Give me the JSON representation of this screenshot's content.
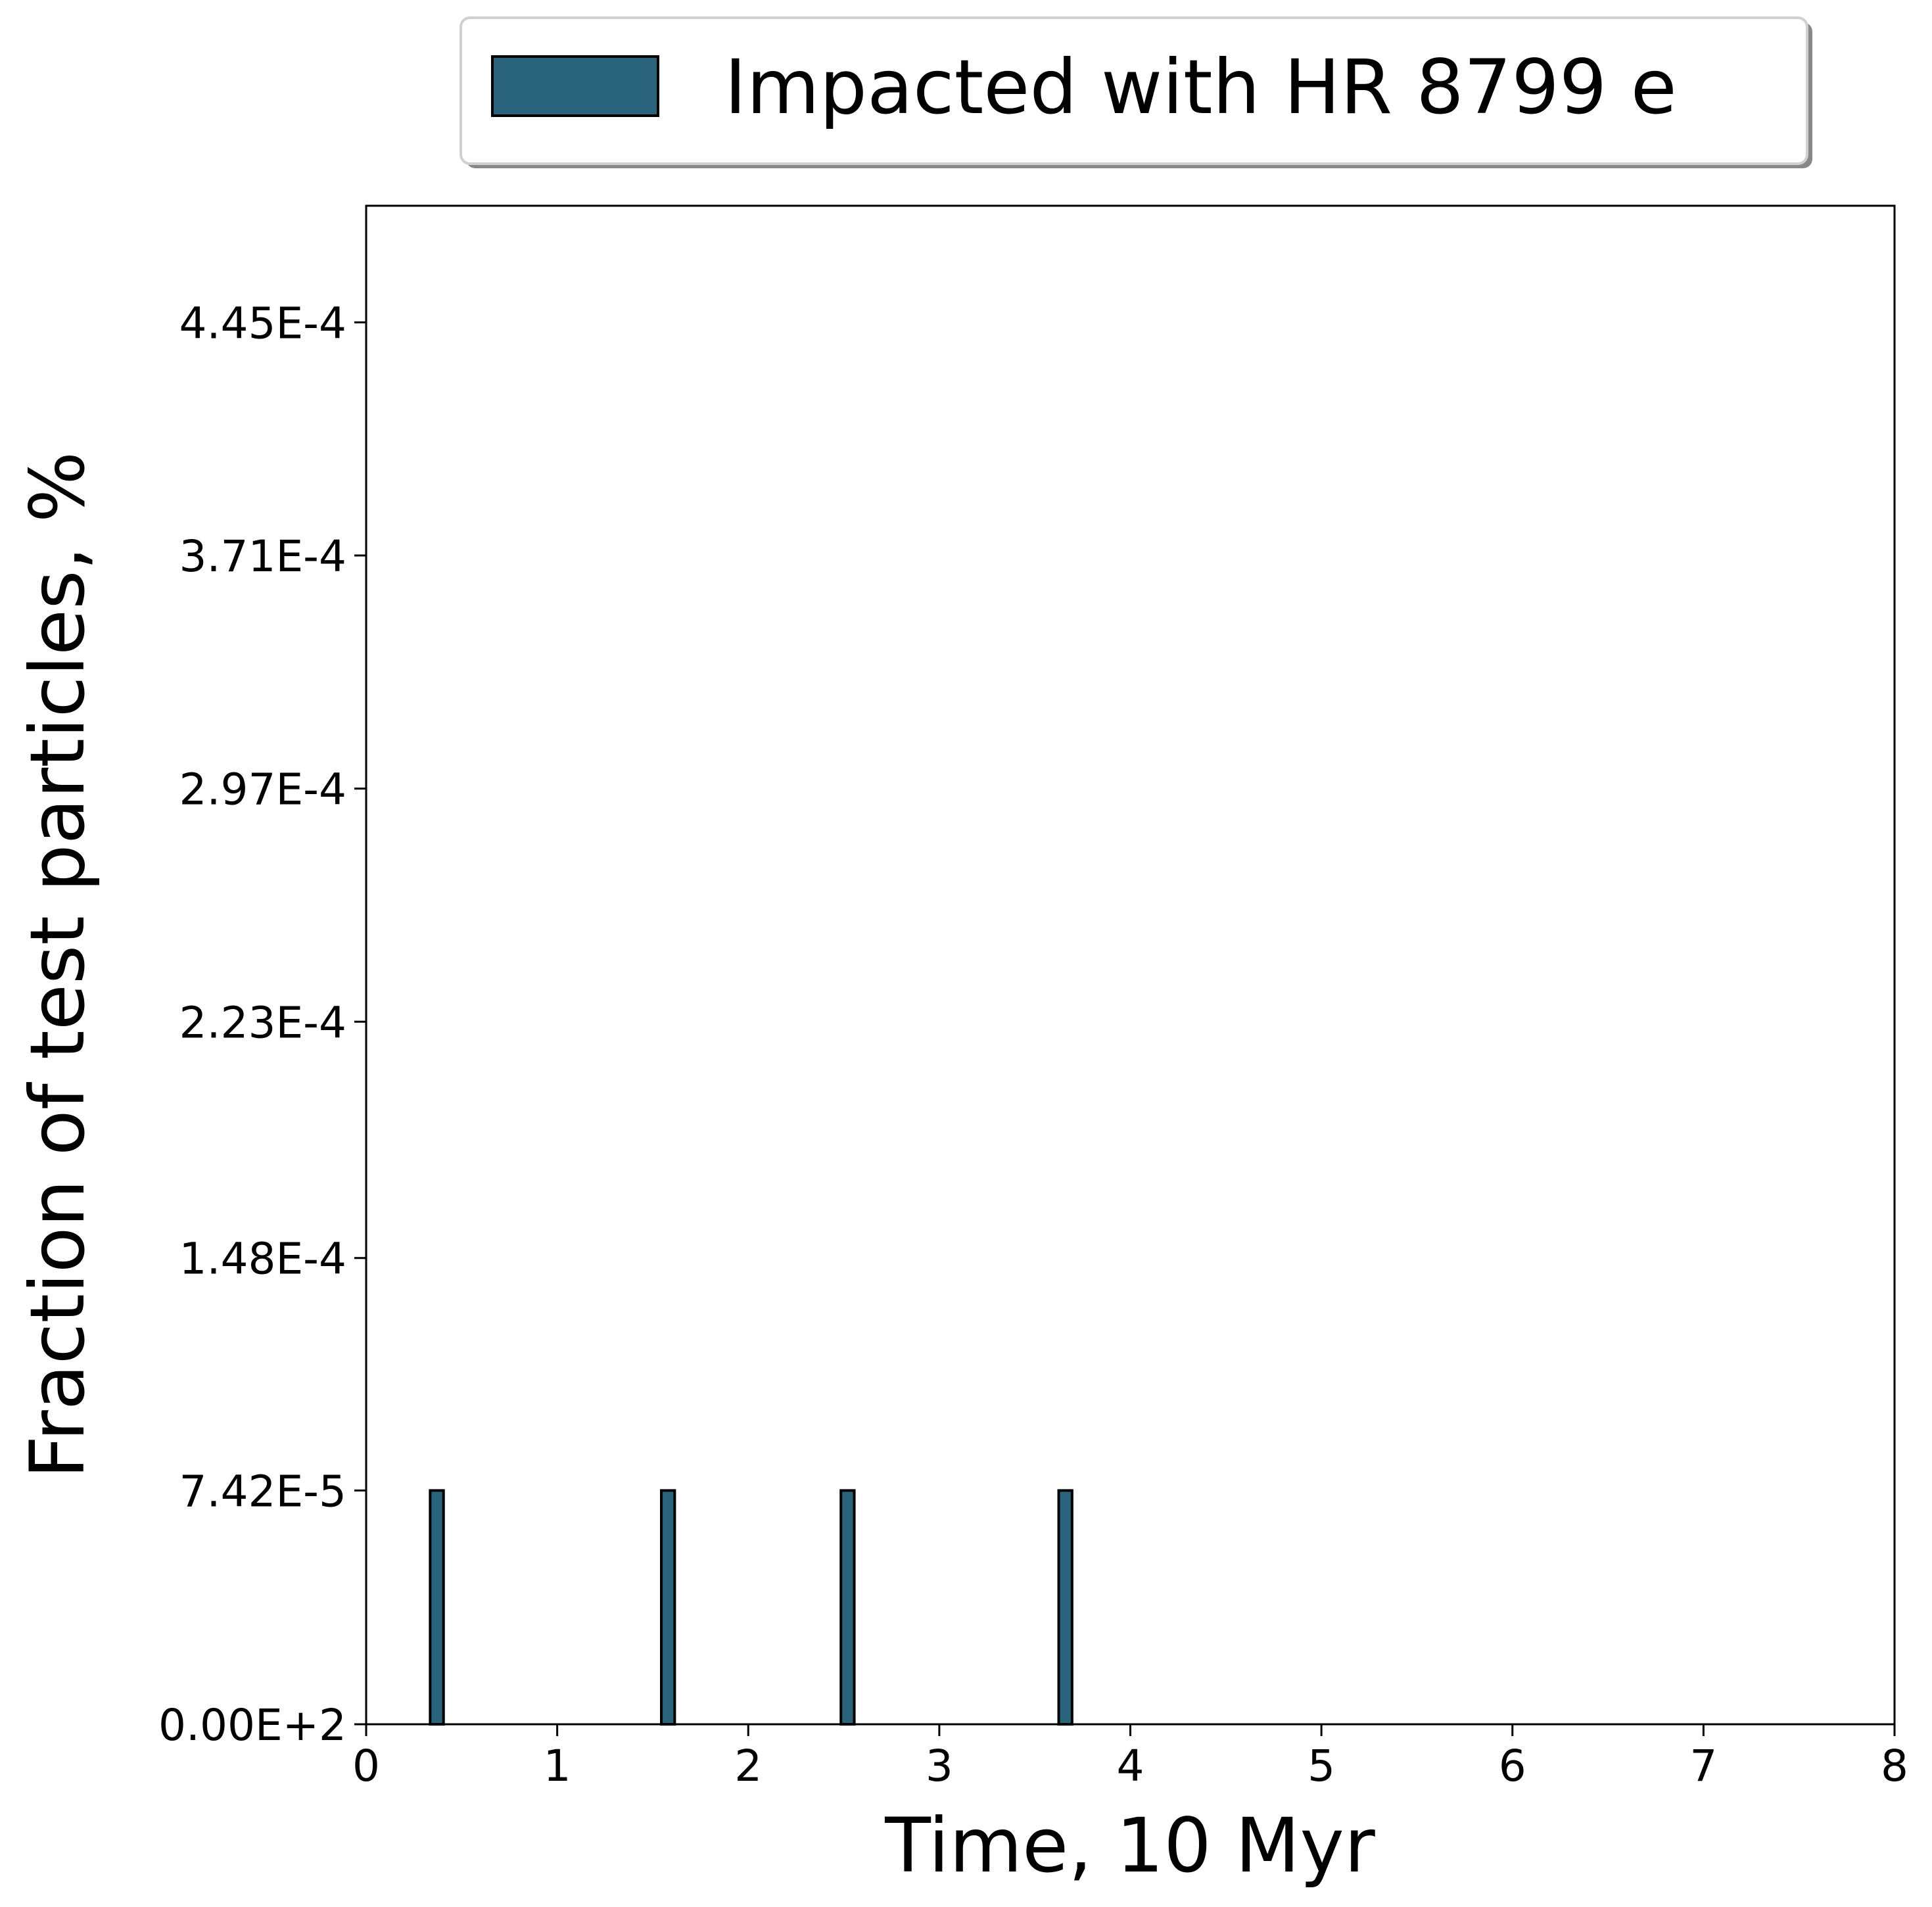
{
  "chart_data": {
    "type": "bar",
    "xlabel": "Time, 10 Myr",
    "ylabel": "Fraction of test particles, %",
    "xlim": [
      0,
      8
    ],
    "ylim": [
      0,
      0.000482
    ],
    "x_ticks": [
      {
        "value": 0,
        "label": "0"
      },
      {
        "value": 1,
        "label": "1"
      },
      {
        "value": 2,
        "label": "2"
      },
      {
        "value": 3,
        "label": "3"
      },
      {
        "value": 4,
        "label": "4"
      },
      {
        "value": 5,
        "label": "5"
      },
      {
        "value": 6,
        "label": "6"
      },
      {
        "value": 7,
        "label": "7"
      },
      {
        "value": 8,
        "label": "8"
      }
    ],
    "y_ticks": [
      {
        "value": 0,
        "label": "0.00E+2"
      },
      {
        "value": 7.42e-05,
        "label": "7.42E-5"
      },
      {
        "value": 0.000148,
        "label": "1.48E-4"
      },
      {
        "value": 0.000223,
        "label": "2.23E-4"
      },
      {
        "value": 0.000297,
        "label": "2.97E-4"
      },
      {
        "value": 0.000371,
        "label": "3.71E-4"
      },
      {
        "value": 0.000445,
        "label": "4.45E-4"
      }
    ],
    "bin_width": 0.07,
    "series": [
      {
        "name": "Impacted with HR 8799 e",
        "color": "#2a637c",
        "edge_color": "#000000",
        "bins": [
          {
            "x": 0.37,
            "value": 7.42e-05
          },
          {
            "x": 1.58,
            "value": 7.42e-05
          },
          {
            "x": 2.52,
            "value": 7.42e-05
          },
          {
            "x": 3.66,
            "value": 7.42e-05
          }
        ]
      }
    ],
    "legend_position": "top-center",
    "grid": false
  }
}
